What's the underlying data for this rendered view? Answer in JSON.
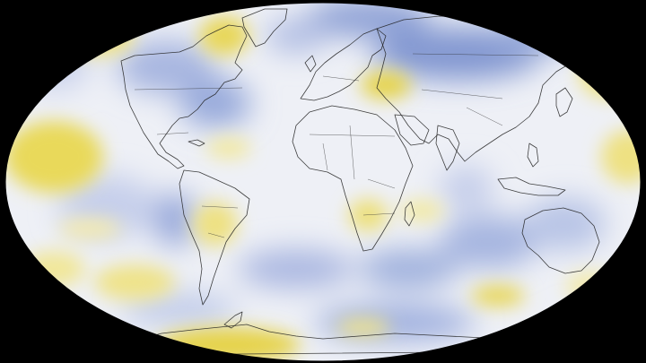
{
  "map": {
    "projection": "robinson",
    "background_color": "#000000",
    "palette": {
      "neutral": "#f1f1f4",
      "cool": "#7f95cf",
      "cool_light": "#b7c4e6",
      "warm": "#e7d64a",
      "warm_light": "#f2ea9c"
    },
    "legend": null,
    "title": null
  }
}
